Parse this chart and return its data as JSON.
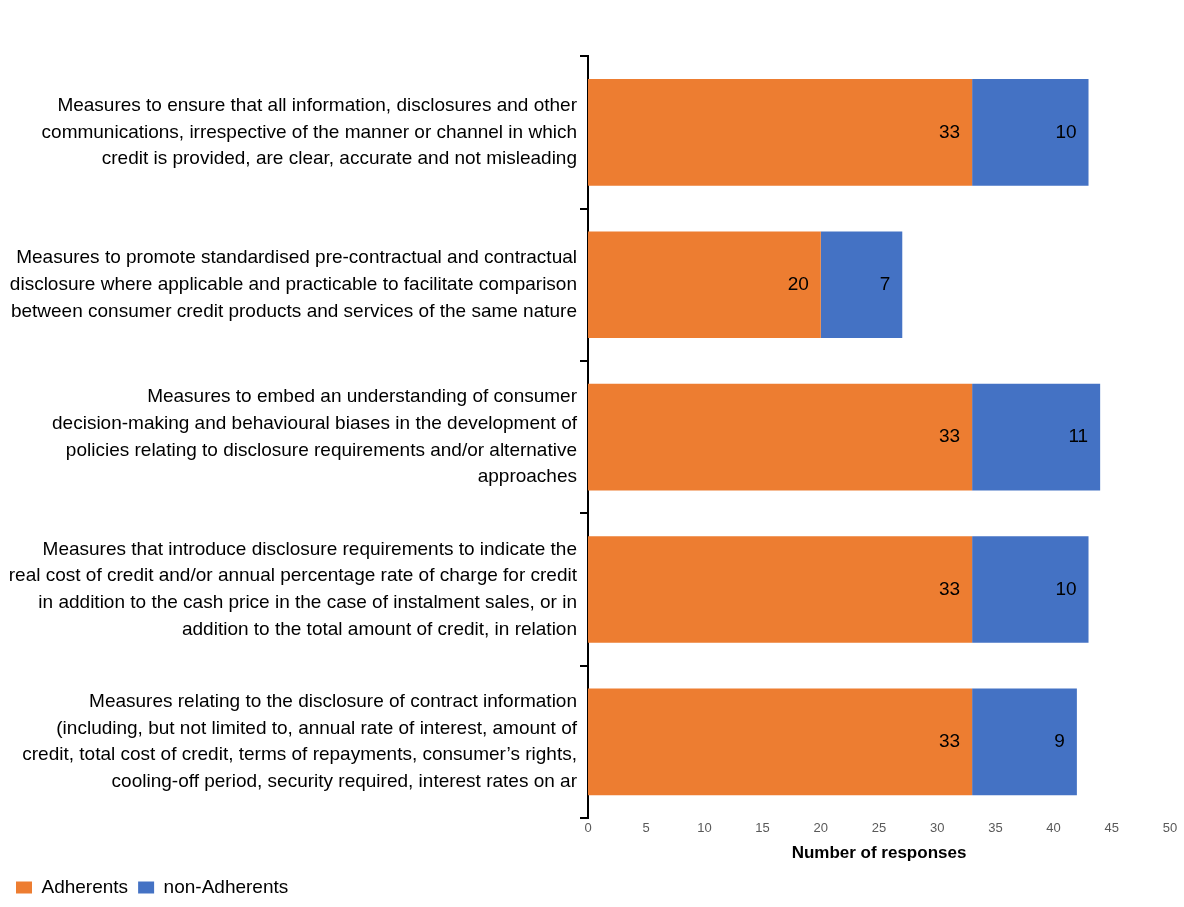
{
  "chart_data": {
    "type": "bar",
    "orientation": "horizontal",
    "stacked": true,
    "xlabel": "Number of responses",
    "categories": [
      "Measures to ensure that all information, disclosures and other communications, irrespective of the manner or channel in which credit is provided, are clear, accurate and not misleading",
      "Measures to promote standardised pre-contractual and contractual disclosure where applicable and practicable to facilitate comparison between consumer credit products and services of the same nature",
      "Measures to embed an understanding of consumer decision-making and behavioural biases in the development of policies relating to disclosure requirements and/or alternative approaches",
      "Measures that introduce disclosure requirements to indicate the real cost of credit and/or annual percentage rate of charge for credit in addition to the cash price in the case of instalment sales, or in addition to the total amount of credit, in relation",
      "Measures relating to the disclosure of contract information (including, but not limited to, annual rate of interest, amount of credit, total cost of credit, terms of repayments, consumer’s rights, cooling-off period, security required, interest rates on ar"
    ],
    "series": [
      {
        "name": "Adherents",
        "color": "#ed7d31",
        "values": [
          33,
          20,
          33,
          33,
          33
        ]
      },
      {
        "name": "non-Adherents",
        "color": "#4472c4",
        "values": [
          10,
          7,
          11,
          10,
          9
        ]
      }
    ],
    "xlim": [
      0,
      50
    ],
    "xticks": [
      0,
      5,
      10,
      15,
      20,
      25,
      30,
      35,
      40,
      45,
      50
    ],
    "data_labels": true,
    "legend": "bottom left",
    "grid": false
  }
}
